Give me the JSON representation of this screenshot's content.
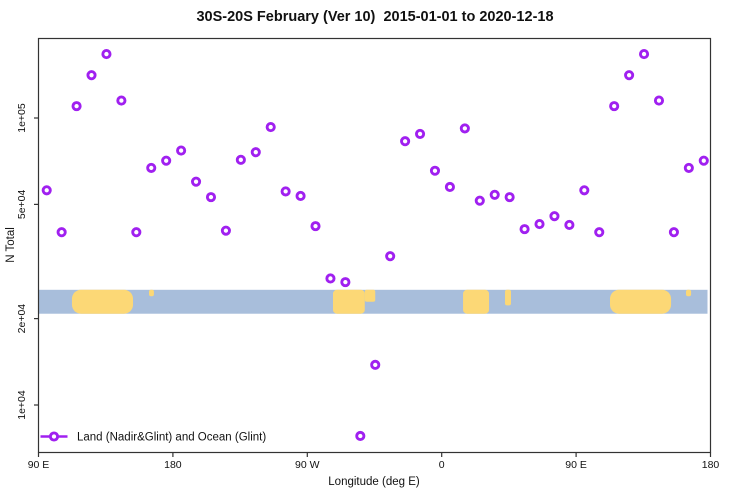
{
  "chart_data": {
    "type": "scatter",
    "title": "30S-20S February (Ver 10)  2015-01-01 to 2020-12-18",
    "xlabel": "Longitude (deg E)",
    "ylabel": "N Total",
    "y_scale": "log10",
    "ylim": [
      6800,
      190000
    ],
    "xlim_deg": [
      0,
      450
    ],
    "x_unit_note": "deg = degrees eastward along axis starting at 90E; axis wraps 90E, 180, 90W, 0, 90E, 180",
    "grid": "off",
    "x_ticks": [
      {
        "deg": 0,
        "label": "90 E"
      },
      {
        "deg": 90,
        "label": "180"
      },
      {
        "deg": 180,
        "label": "90 W"
      },
      {
        "deg": 270,
        "label": "0"
      },
      {
        "deg": 360,
        "label": "90 E"
      },
      {
        "deg": 450,
        "label": "180"
      }
    ],
    "y_ticks": [
      {
        "value": 100000,
        "label": "1e+05"
      },
      {
        "value": 50000,
        "label": "5e+04"
      },
      {
        "value": 20000,
        "label": "2e+04"
      },
      {
        "value": 10000,
        "label": "1e+04"
      }
    ],
    "legend": {
      "label": "Land (Nadir&Glint) and Ocean (Glint)",
      "position": "bottom-left",
      "marker": "line-with-open-circle"
    },
    "series": [
      {
        "name": "Land (Nadir&Glint) and Ocean (Glint)",
        "marker": "open-circle",
        "color": "#A020F0",
        "points": [
          {
            "deg": 5.5,
            "n": 56000
          },
          {
            "deg": 15.5,
            "n": 40000
          },
          {
            "deg": 25.5,
            "n": 110000
          },
          {
            "deg": 35.5,
            "n": 141000
          },
          {
            "deg": 45.5,
            "n": 167000
          },
          {
            "deg": 55.5,
            "n": 115000
          },
          {
            "deg": 65.5,
            "n": 40000
          },
          {
            "deg": 75.5,
            "n": 67000
          },
          {
            "deg": 85.5,
            "n": 71000
          },
          {
            "deg": 95.5,
            "n": 77000
          },
          {
            "deg": 105.5,
            "n": 60000
          },
          {
            "deg": 115.5,
            "n": 53000
          },
          {
            "deg": 125.5,
            "n": 40500
          },
          {
            "deg": 135.5,
            "n": 71500
          },
          {
            "deg": 145.5,
            "n": 76000
          },
          {
            "deg": 155.5,
            "n": 93000
          },
          {
            "deg": 165.5,
            "n": 55500
          },
          {
            "deg": 175.5,
            "n": 53500
          },
          {
            "deg": 185.5,
            "n": 42000
          },
          {
            "deg": 195.5,
            "n": 27600
          },
          {
            "deg": 205.5,
            "n": 26800
          },
          {
            "deg": 215.5,
            "n": 7800
          },
          {
            "deg": 225.5,
            "n": 13800
          },
          {
            "deg": 235.5,
            "n": 33000
          },
          {
            "deg": 245.5,
            "n": 83000
          },
          {
            "deg": 255.5,
            "n": 88000
          },
          {
            "deg": 265.5,
            "n": 65500
          },
          {
            "deg": 275.5,
            "n": 57500
          },
          {
            "deg": 285.5,
            "n": 92000
          },
          {
            "deg": 295.5,
            "n": 51500
          },
          {
            "deg": 305.5,
            "n": 54000
          },
          {
            "deg": 315.5,
            "n": 53000
          },
          {
            "deg": 325.5,
            "n": 41000
          },
          {
            "deg": 335.5,
            "n": 42700
          },
          {
            "deg": 345.5,
            "n": 45500
          },
          {
            "deg": 355.5,
            "n": 42400
          },
          {
            "deg": 365.5,
            "n": 56000
          },
          {
            "deg": 375.5,
            "n": 40000
          },
          {
            "deg": 385.5,
            "n": 110000
          },
          {
            "deg": 395.5,
            "n": 141000
          },
          {
            "deg": 405.5,
            "n": 167000
          },
          {
            "deg": 415.5,
            "n": 115000
          },
          {
            "deg": 425.5,
            "n": 40000
          },
          {
            "deg": 435.5,
            "n": 67000
          },
          {
            "deg": 445.5,
            "n": 71000
          }
        ]
      }
    ],
    "map_band": {
      "ocean_color": "#A8BEDB",
      "land_color": "#FCD876",
      "n_top": 25200,
      "n_bottom": 20800,
      "land_segments": [
        {
          "region": "australia",
          "from_deg": 22.4,
          "to_deg": 63.3,
          "shape": "full",
          "round": 9
        },
        {
          "region": "new-caledonia",
          "from_deg": 74.0,
          "to_deg": 77.3,
          "shape": "top",
          "frac": 0.27
        },
        {
          "region": "south-america",
          "from_deg": 197.2,
          "to_deg": 218.5,
          "shape": "full",
          "round": 4
        },
        {
          "region": "south-america-east",
          "from_deg": 218.5,
          "to_deg": 225.5,
          "shape": "top",
          "frac": 0.5
        },
        {
          "region": "africa",
          "from_deg": 284.3,
          "to_deg": 301.7,
          "shape": "full",
          "round": 4
        },
        {
          "region": "madagascar",
          "from_deg": 312.4,
          "to_deg": 316.4,
          "shape": "top",
          "frac": 0.65
        },
        {
          "region": "australia",
          "from_deg": 382.7,
          "to_deg": 423.6,
          "shape": "full",
          "round": 9
        },
        {
          "region": "new-caledonia",
          "from_deg": 433.6,
          "to_deg": 437.0,
          "shape": "top",
          "frac": 0.27
        }
      ]
    },
    "axis_color": "#333333",
    "text_color": "#111111",
    "background_color": "#FFFFFF"
  }
}
